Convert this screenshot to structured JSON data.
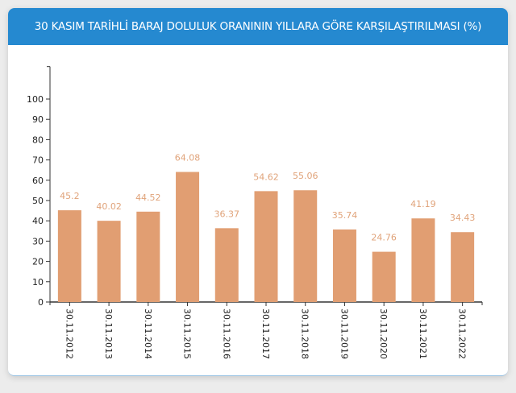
{
  "chart_data": {
    "type": "bar",
    "title": "30 KASIM TARİHLİ BARAJ DOLULUK ORANININ YILLARA GÖRE KARŞILAŞTIRILMASI (%)",
    "categories": [
      "30.11.2012",
      "30.11.2013",
      "30.11.2014",
      "30.11.2015",
      "30.11.2016",
      "30.11.2017",
      "30.11.2018",
      "30.11.2019",
      "30.11.2020",
      "30.11.2021",
      "30.11.2022"
    ],
    "values": [
      45.2,
      40.02,
      44.52,
      64.08,
      36.37,
      54.62,
      55.06,
      35.74,
      24.76,
      41.19,
      34.43
    ],
    "value_labels": [
      "45.2",
      "40.02",
      "44.52",
      "64.08",
      "36.37",
      "54.62",
      "55.06",
      "35.74",
      "24.76",
      "41.19",
      "34.43"
    ],
    "yticks": [
      "0",
      "10",
      "20",
      "30",
      "40",
      "50",
      "60",
      "70",
      "80",
      "90",
      "100"
    ],
    "ylim": [
      0,
      116
    ],
    "xlabel": "",
    "ylabel": "",
    "grid": false,
    "bar_color": "#e19e72",
    "label_color": "#e0a37a",
    "header_color": "#2589d0"
  }
}
